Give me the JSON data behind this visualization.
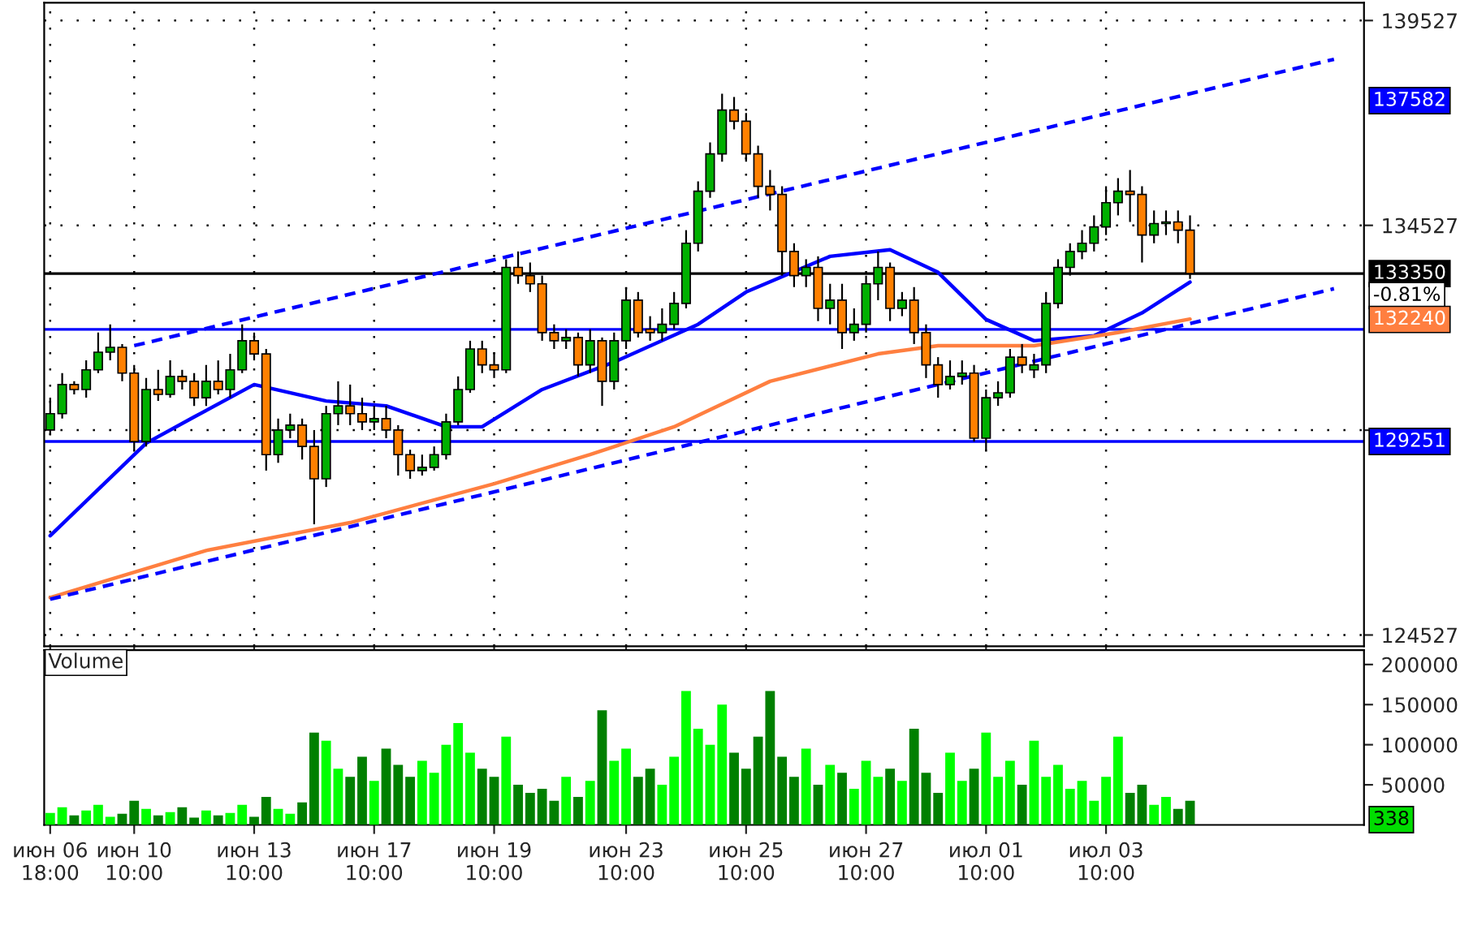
{
  "chart_data": [
    {
      "type": "candlestick",
      "categories": [
        null,
        null,
        null,
        null,
        null,
        null,
        null,
        null,
        null,
        null,
        null,
        null,
        null,
        null,
        null,
        null,
        null,
        null,
        null,
        null,
        null,
        null,
        null,
        null,
        null,
        null,
        null,
        null,
        null,
        null,
        null,
        null,
        null,
        null,
        null,
        null,
        null,
        null,
        null,
        null,
        null,
        null,
        null,
        null,
        null,
        null,
        null,
        null,
        null,
        null,
        null,
        null,
        null,
        null,
        null,
        null,
        null,
        null,
        null,
        null,
        null,
        null,
        null,
        null,
        null,
        null,
        null,
        null,
        null,
        null,
        null,
        null,
        null,
        null,
        null,
        null,
        null,
        null,
        null,
        null,
        null,
        null,
        null,
        null,
        null,
        null,
        null,
        null,
        null,
        null,
        null,
        null,
        null,
        null,
        null,
        null,
        null,
        null,
        null,
        null,
        null,
        null,
        null,
        null,
        null,
        null,
        null,
        null,
        null,
        null
      ],
      "ohlc": [
        [
          129530,
          130320,
          129410,
          129930
        ],
        [
          129930,
          130920,
          129810,
          130640
        ],
        [
          130640,
          130720,
          130400,
          130520
        ],
        [
          130520,
          131230,
          130320,
          131000
        ],
        [
          131000,
          131910,
          130920,
          131430
        ],
        [
          131430,
          132110,
          131230,
          131550
        ],
        [
          131550,
          131630,
          130720,
          130920
        ],
        [
          130920,
          131120,
          129050,
          129250
        ],
        [
          129250,
          130800,
          129130,
          130520
        ],
        [
          130520,
          131000,
          130240,
          130400
        ],
        [
          130400,
          131230,
          130320,
          130840
        ],
        [
          130840,
          131000,
          130520,
          130720
        ],
        [
          130720,
          130920,
          130120,
          130320
        ],
        [
          130320,
          131120,
          130120,
          130720
        ],
        [
          130720,
          131230,
          130400,
          130520
        ],
        [
          130520,
          131390,
          130320,
          131000
        ],
        [
          131000,
          132110,
          130920,
          131710
        ],
        [
          131710,
          131910,
          131230,
          131390
        ],
        [
          131390,
          131510,
          128540,
          128930
        ],
        [
          128930,
          129810,
          128730,
          129530
        ],
        [
          129530,
          129930,
          129330,
          129650
        ],
        [
          129650,
          129810,
          128810,
          129130
        ],
        [
          129130,
          129530,
          127230,
          128340
        ],
        [
          128340,
          130120,
          128140,
          129930
        ],
        [
          129930,
          130720,
          129650,
          130120
        ],
        [
          130120,
          130640,
          129650,
          129930
        ],
        [
          129930,
          130320,
          129530,
          129730
        ],
        [
          129730,
          130120,
          129530,
          129810
        ],
        [
          129810,
          130120,
          129330,
          129530
        ],
        [
          129530,
          129650,
          128420,
          128930
        ],
        [
          128930,
          129050,
          128340,
          128540
        ],
        [
          128540,
          128930,
          128420,
          128620
        ],
        [
          128620,
          129130,
          128540,
          128930
        ],
        [
          128930,
          129930,
          128810,
          129730
        ],
        [
          129730,
          130840,
          129650,
          130520
        ],
        [
          130520,
          131710,
          130440,
          131510
        ],
        [
          131510,
          131710,
          130920,
          131120
        ],
        [
          131120,
          131430,
          130800,
          131000
        ],
        [
          131000,
          133700,
          130920,
          133500
        ],
        [
          133500,
          133890,
          133100,
          133300
        ],
        [
          133300,
          133620,
          132900,
          133100
        ],
        [
          133100,
          133300,
          131710,
          131910
        ],
        [
          131910,
          132110,
          131510,
          131710
        ],
        [
          131710,
          131990,
          131510,
          131790
        ],
        [
          131790,
          131910,
          130840,
          131120
        ],
        [
          131120,
          131990,
          130920,
          131710
        ],
        [
          131710,
          131790,
          130120,
          130720
        ],
        [
          130720,
          131910,
          130520,
          131710
        ],
        [
          131710,
          133020,
          131510,
          132700
        ],
        [
          132700,
          132900,
          131790,
          131910
        ],
        [
          131990,
          132310,
          131710,
          131910
        ],
        [
          131910,
          132500,
          131710,
          132110
        ],
        [
          132110,
          132900,
          131990,
          132620
        ],
        [
          132620,
          134410,
          132500,
          134090
        ],
        [
          134090,
          135600,
          133890,
          135360
        ],
        [
          135360,
          136550,
          135200,
          136270
        ],
        [
          136270,
          137740,
          136080,
          137340
        ],
        [
          137340,
          137660,
          136870,
          137070
        ],
        [
          137070,
          137270,
          136080,
          136270
        ],
        [
          136270,
          136470,
          135200,
          135480
        ],
        [
          135480,
          135880,
          134890,
          135280
        ],
        [
          135280,
          135480,
          133300,
          133890
        ],
        [
          133890,
          134090,
          133020,
          133300
        ],
        [
          133300,
          133700,
          133020,
          133500
        ],
        [
          133500,
          133770,
          132190,
          132500
        ],
        [
          132500,
          133100,
          132110,
          132700
        ],
        [
          132700,
          133100,
          131510,
          131910
        ],
        [
          131910,
          132500,
          131710,
          132110
        ],
        [
          132110,
          133300,
          131910,
          133100
        ],
        [
          133100,
          133890,
          132700,
          133500
        ],
        [
          133500,
          133620,
          132190,
          132500
        ],
        [
          132500,
          132900,
          132310,
          132700
        ],
        [
          132700,
          133020,
          131630,
          131910
        ],
        [
          131910,
          132110,
          130800,
          131120
        ],
        [
          131120,
          131310,
          130320,
          130640
        ],
        [
          130640,
          131230,
          130520,
          130840
        ],
        [
          130840,
          131230,
          130640,
          130920
        ],
        [
          130920,
          131120,
          129250,
          129330
        ],
        [
          129330,
          130520,
          129050,
          130320
        ],
        [
          130320,
          130720,
          130120,
          130440
        ],
        [
          130440,
          131510,
          130320,
          131310
        ],
        [
          131310,
          131630,
          130920,
          131120
        ],
        [
          131000,
          131390,
          130800,
          131120
        ],
        [
          131120,
          132900,
          130920,
          132620
        ],
        [
          132620,
          133700,
          132500,
          133500
        ],
        [
          133500,
          134090,
          133300,
          133890
        ],
        [
          133890,
          134410,
          133700,
          134090
        ],
        [
          134090,
          134770,
          133890,
          134490
        ],
        [
          134490,
          135480,
          134290,
          135080
        ],
        [
          135080,
          135680,
          134770,
          135360
        ],
        [
          135360,
          135880,
          134610,
          135280
        ],
        [
          135280,
          135480,
          133620,
          134290
        ],
        [
          134290,
          134890,
          134090,
          134570
        ],
        [
          134570,
          134890,
          134290,
          134610
        ],
        [
          134610,
          134890,
          134090,
          134410
        ],
        [
          134410,
          134770,
          133220,
          133350
        ],
        null,
        null,
        null,
        null,
        null,
        null,
        null,
        null,
        null,
        null,
        null,
        null,
        null,
        null
      ],
      "colors": [
        "#00b000",
        "#00b000",
        "#ff8000",
        "#00b000",
        "#00b000",
        "#00b000",
        "#ff8000",
        "#ff8000",
        "#00b000",
        "#ff8000",
        "#00b000",
        "#ff8000",
        "#ff8000",
        "#00b000",
        "#ff8000",
        "#00b000",
        "#00b000",
        "#ff8000",
        "#ff8000",
        "#00b000",
        "#00b000",
        "#ff8000",
        "#ff8000",
        "#00b000",
        "#00b000",
        "#ff8000",
        "#ff8000",
        "#00b000",
        "#ff8000",
        "#ff8000",
        "#ff8000",
        "#00b000",
        "#00b000",
        "#00b000",
        "#00b000",
        "#00b000",
        "#ff8000",
        "#ff8000",
        "#00b000",
        "#ff8000",
        "#ff8000",
        "#ff8000",
        "#ff8000",
        "#00b000",
        "#ff8000",
        "#00b000",
        "#ff8000",
        "#00b000",
        "#00b000",
        "#ff8000",
        "#ff8000",
        "#00b000",
        "#00b000",
        "#00b000",
        "#00b000",
        "#00b000",
        "#00b000",
        "#ff8000",
        "#ff8000",
        "#ff8000",
        "#ff8000",
        "#ff8000",
        "#ff8000",
        "#00b000",
        "#ff8000",
        "#00b000",
        "#ff8000",
        "#00b000",
        "#00b000",
        "#00b000",
        "#ff8000",
        "#00b000",
        "#ff8000",
        "#ff8000",
        "#ff8000",
        "#00b000",
        "#00b000",
        "#ff8000",
        "#00b000",
        "#00b000",
        "#00b000",
        "#ff8000",
        "#00b000",
        "#00b000",
        "#00b000",
        "#00b000",
        "#00b000",
        "#00b000",
        "#00b000",
        "#00b000",
        "#ff8000",
        "#ff8000",
        "#00b000",
        "#00b000",
        "#ff8000",
        "#ff8000",
        null,
        null,
        null,
        null,
        null,
        null,
        null,
        null,
        null,
        null,
        null,
        null,
        null,
        null
      ],
      "series": [
        {
          "type": "line",
          "color": "#0000ff",
          "line_style": "solid",
          "values": [
            126950,
            null,
            null,
            null,
            null,
            null,
            null,
            null,
            129210,
            null,
            null,
            null,
            129850,
            null,
            null,
            null,
            null,
            130640,
            null,
            null,
            null,
            null,
            null,
            130240,
            null,
            null,
            null,
            null,
            130120,
            null,
            null,
            null,
            null,
            129610,
            null,
            null,
            129610,
            null,
            null,
            null,
            null,
            130520,
            null,
            null,
            null,
            null,
            null,
            131190,
            null,
            null,
            null,
            null,
            null,
            null,
            132110,
            null,
            null,
            null,
            132900,
            null,
            null,
            null,
            null,
            null,
            null,
            133770,
            null,
            null,
            null,
            null,
            133930,
            null,
            null,
            null,
            133380,
            null,
            null,
            null,
            132230,
            null,
            null,
            null,
            131710,
            null,
            null,
            null,
            null,
            131830,
            null,
            null,
            null,
            132390,
            null,
            null,
            null,
            133140,
            null,
            null,
            null,
            null,
            null,
            null,
            null,
            null,
            null,
            null,
            null,
            null,
            null,
            null
          ]
        },
        {
          "type": "line",
          "color": "#ff7f40",
          "line_style": "solid",
          "values": [
            125440,
            null,
            null,
            null,
            null,
            null,
            null,
            null,
            null,
            null,
            null,
            null,
            null,
            126590,
            null,
            null,
            null,
            null,
            null,
            null,
            null,
            null,
            null,
            null,
            null,
            127270,
            null,
            null,
            null,
            null,
            null,
            null,
            null,
            null,
            null,
            null,
            null,
            128220,
            null,
            null,
            null,
            null,
            null,
            null,
            null,
            128930,
            null,
            null,
            null,
            null,
            null,
            null,
            129610,
            null,
            null,
            null,
            null,
            null,
            null,
            null,
            130720,
            null,
            null,
            null,
            null,
            null,
            null,
            null,
            null,
            131390,
            null,
            null,
            null,
            null,
            131590,
            null,
            null,
            null,
            null,
            null,
            null,
            null,
            131590,
            null,
            null,
            null,
            null,
            null,
            null,
            131910,
            null,
            null,
            null,
            null,
            null,
            132240,
            null,
            null,
            null,
            null,
            null,
            null,
            null,
            null,
            null,
            null,
            null,
            null,
            null,
            null
          ]
        },
        {
          "type": "line",
          "color": "#0000ff",
          "line_style": "dashed",
          "values": [
            null,
            null,
            null,
            null,
            null,
            null,
            null,
            131590,
            null,
            null,
            null,
            null,
            null,
            null,
            null,
            null,
            null,
            null,
            null,
            null,
            null,
            null,
            null,
            null,
            null,
            null,
            null,
            null,
            null,
            null,
            null,
            null,
            null,
            null,
            null,
            null,
            null,
            null,
            null,
            null,
            null,
            null,
            null,
            null,
            null,
            null,
            null,
            null,
            null,
            null,
            null,
            null,
            null,
            null,
            null,
            null,
            null,
            null,
            null,
            null,
            null,
            null,
            null,
            null,
            null,
            null,
            null,
            null,
            null,
            null,
            null,
            null,
            null,
            null,
            null,
            null,
            null,
            null,
            null,
            null,
            null,
            null,
            null,
            null,
            null,
            null,
            null,
            null,
            null,
            null,
            null,
            null,
            null,
            null,
            null,
            null,
            null,
            null,
            null,
            null,
            null,
            null,
            null,
            null,
            null,
            null,
            null,
            138580,
            null,
            null
          ]
        },
        {
          "type": "line",
          "color": "#0000ff",
          "line_style": "dashed",
          "values": [
            125400,
            null,
            null,
            null,
            null,
            null,
            null,
            null,
            null,
            null,
            null,
            null,
            null,
            null,
            null,
            null,
            null,
            null,
            null,
            null,
            null,
            null,
            null,
            null,
            null,
            null,
            null,
            null,
            null,
            null,
            null,
            null,
            null,
            null,
            null,
            null,
            null,
            null,
            null,
            null,
            null,
            null,
            null,
            null,
            null,
            null,
            null,
            null,
            null,
            null,
            null,
            null,
            null,
            null,
            null,
            null,
            null,
            null,
            null,
            null,
            null,
            null,
            null,
            null,
            null,
            null,
            null,
            null,
            null,
            null,
            null,
            null,
            null,
            null,
            null,
            null,
            null,
            null,
            null,
            null,
            null,
            null,
            null,
            null,
            null,
            null,
            null,
            null,
            null,
            null,
            null,
            null,
            null,
            null,
            null,
            null,
            null,
            null,
            null,
            null,
            null,
            null,
            null,
            null,
            null,
            null,
            null,
            132980,
            null,
            null
          ]
        }
      ],
      "ylim": [
        124250,
        139960
      ],
      "yticks": [
        124527,
        {
          "value": 129527,
          "label": null
        },
        134527,
        139527
      ],
      "tick_labels": "y",
      "grid": true,
      "ref_lines": [
        {
          "axis": "y",
          "value": 133350,
          "label": "133350",
          "color": "#000000"
        },
        {
          "axis": "y",
          "value": 131988,
          "color": "#0000ff"
        },
        {
          "axis": "y",
          "value": 129251,
          "label": "129251",
          "color": "#0000ff"
        }
      ],
      "annotations": [
        "137582",
        "-0.81%",
        "132240"
      ]
    },
    {
      "type": "bar",
      "title": "Volume",
      "categories": [
        "июн 06\n18:00",
        null,
        null,
        null,
        null,
        null,
        null,
        "июн 10\n10:00",
        null,
        null,
        null,
        null,
        null,
        null,
        null,
        null,
        null,
        "июн 13\n10:00",
        null,
        null,
        null,
        null,
        null,
        null,
        null,
        null,
        null,
        "июн 17\n10:00",
        null,
        null,
        null,
        null,
        null,
        null,
        null,
        null,
        null,
        "июн 19\n10:00",
        null,
        null,
        null,
        null,
        null,
        null,
        null,
        null,
        null,
        null,
        "июн 23\n10:00",
        null,
        null,
        null,
        null,
        null,
        null,
        null,
        null,
        null,
        "июн 25\n10:00",
        null,
        null,
        null,
        null,
        null,
        null,
        null,
        null,
        null,
        "июн 27\n10:00",
        null,
        null,
        null,
        null,
        null,
        null,
        null,
        null,
        null,
        "июл 01\n10:00",
        null,
        null,
        null,
        null,
        null,
        null,
        null,
        null,
        null,
        "июл 03\n10:00",
        null,
        null,
        null,
        null,
        null,
        null,
        null,
        null,
        null,
        null,
        null,
        null,
        null,
        null,
        null,
        null,
        null,
        null,
        null,
        null,
        null
      ],
      "values": [
        15000,
        22000,
        12000,
        18000,
        25000,
        10000,
        14000,
        30000,
        20000,
        12000,
        16000,
        22000,
        9000,
        18000,
        12000,
        15000,
        25000,
        10000,
        35000,
        20000,
        14000,
        28000,
        115000,
        105000,
        70000,
        60000,
        85000,
        55000,
        95000,
        75000,
        60000,
        80000,
        65000,
        100000,
        127000,
        90000,
        70000,
        60000,
        110000,
        50000,
        40000,
        45000,
        30000,
        60000,
        35000,
        55000,
        143000,
        80000,
        95000,
        60000,
        70000,
        50000,
        85000,
        167000,
        120000,
        100000,
        150000,
        90000,
        70000,
        110000,
        167000,
        85000,
        60000,
        95000,
        50000,
        75000,
        65000,
        45000,
        80000,
        60000,
        70000,
        55000,
        120000,
        65000,
        40000,
        90000,
        55000,
        70000,
        115000,
        60000,
        80000,
        50000,
        105000,
        60000,
        75000,
        45000,
        55000,
        30000,
        60000,
        110000,
        40000,
        50000,
        25000,
        35000,
        20000,
        30000,
        null,
        null,
        null,
        null,
        null,
        null,
        null,
        null,
        null,
        null,
        null,
        null,
        null,
        null
      ],
      "colors": [
        "#00ff00",
        "#00ff00",
        "#008000",
        "#00ff00",
        "#00ff00",
        "#00ff00",
        "#008000",
        "#008000",
        "#00ff00",
        "#008000",
        "#00ff00",
        "#008000",
        "#008000",
        "#00ff00",
        "#008000",
        "#00ff00",
        "#00ff00",
        "#008000",
        "#008000",
        "#00ff00",
        "#00ff00",
        "#008000",
        "#008000",
        "#00ff00",
        "#00ff00",
        "#008000",
        "#008000",
        "#00ff00",
        "#008000",
        "#008000",
        "#008000",
        "#00ff00",
        "#00ff00",
        "#00ff00",
        "#00ff00",
        "#00ff00",
        "#008000",
        "#008000",
        "#00ff00",
        "#008000",
        "#008000",
        "#008000",
        "#008000",
        "#00ff00",
        "#008000",
        "#00ff00",
        "#008000",
        "#00ff00",
        "#00ff00",
        "#008000",
        "#008000",
        "#00ff00",
        "#00ff00",
        "#00ff00",
        "#00ff00",
        "#00ff00",
        "#00ff00",
        "#008000",
        "#008000",
        "#008000",
        "#008000",
        "#008000",
        "#008000",
        "#00ff00",
        "#008000",
        "#00ff00",
        "#008000",
        "#00ff00",
        "#00ff00",
        "#00ff00",
        "#008000",
        "#00ff00",
        "#008000",
        "#008000",
        "#008000",
        "#00ff00",
        "#00ff00",
        "#008000",
        "#00ff00",
        "#00ff00",
        "#00ff00",
        "#008000",
        "#00ff00",
        "#00ff00",
        "#00ff00",
        "#00ff00",
        "#00ff00",
        "#00ff00",
        "#00ff00",
        "#00ff00",
        "#008000",
        "#008000",
        "#00ff00",
        "#00ff00",
        "#008000",
        "#008000",
        null,
        null,
        null,
        null,
        null,
        null,
        null,
        null,
        null,
        null,
        null,
        null,
        null,
        null
      ],
      "ylim": [
        0,
        218000
      ],
      "yticks": [
        50000,
        100000,
        150000,
        200000
      ],
      "annotations": [
        "338"
      ]
    }
  ]
}
